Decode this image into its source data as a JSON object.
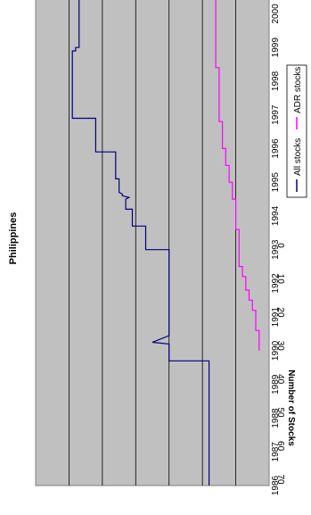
{
  "chart_data": {
    "type": "line",
    "title": "Philippines",
    "xlabel": "",
    "ylabel": "Number of Stocks",
    "xlim": [
      1986,
      2000.7
    ],
    "ylim": [
      0,
      70
    ],
    "x_ticks": [
      "1986",
      "1987",
      "1988",
      "1989",
      "1990",
      "1991",
      "1992",
      "1993",
      "1994",
      "1995",
      "1996",
      "1997",
      "1998",
      "1999",
      "2000"
    ],
    "y_ticks": [
      "0",
      "10",
      "20",
      "30",
      "40",
      "50",
      "60",
      "70"
    ],
    "grid": "horizontal major gridlines",
    "plot_background": "#c0c0c0",
    "legend_position": "bottom",
    "series": [
      {
        "name": "All stocks",
        "color": "#000080",
        "points": [
          [
            1986.0,
            18
          ],
          [
            1989.7,
            18
          ],
          [
            1989.7,
            30
          ],
          [
            1990.2,
            30
          ],
          [
            1990.25,
            35
          ],
          [
            1990.45,
            30
          ],
          [
            1993.0,
            30
          ],
          [
            1993.0,
            37
          ],
          [
            1993.7,
            37
          ],
          [
            1993.7,
            41
          ],
          [
            1994.2,
            41
          ],
          [
            1994.2,
            43
          ],
          [
            1994.5,
            43
          ],
          [
            1994.55,
            42
          ],
          [
            1994.6,
            44
          ],
          [
            1994.65,
            44
          ],
          [
            1994.7,
            45
          ],
          [
            1995.1,
            45
          ],
          [
            1995.1,
            46
          ],
          [
            1995.9,
            46
          ],
          [
            1995.9,
            52
          ],
          [
            1996.9,
            52
          ],
          [
            1996.9,
            59
          ],
          [
            1998.9,
            59
          ],
          [
            1998.9,
            58
          ],
          [
            1999.0,
            58
          ],
          [
            1999.0,
            57
          ],
          [
            1999.5,
            57
          ],
          [
            1999.6,
            57
          ],
          [
            2000.7,
            57
          ]
        ]
      },
      {
        "name": "ADR stocks",
        "color": "#ff00ff",
        "points": [
          [
            1990.0,
            3
          ],
          [
            1990.6,
            3
          ],
          [
            1990.6,
            4
          ],
          [
            1991.2,
            4
          ],
          [
            1991.2,
            5
          ],
          [
            1991.5,
            5
          ],
          [
            1991.5,
            6
          ],
          [
            1991.8,
            6
          ],
          [
            1991.8,
            7
          ],
          [
            1992.2,
            7
          ],
          [
            1992.2,
            8
          ],
          [
            1992.5,
            8
          ],
          [
            1992.5,
            9
          ],
          [
            1993.6,
            9
          ],
          [
            1993.6,
            10
          ],
          [
            1994.5,
            10
          ],
          [
            1994.5,
            11
          ],
          [
            1995.0,
            11
          ],
          [
            1995.0,
            12
          ],
          [
            1995.5,
            12
          ],
          [
            1995.5,
            13
          ],
          [
            1996.0,
            13
          ],
          [
            1996.0,
            14
          ],
          [
            1996.8,
            14
          ],
          [
            1996.8,
            15
          ],
          [
            1998.4,
            15
          ],
          [
            1998.4,
            16
          ],
          [
            2000.7,
            16
          ]
        ]
      }
    ]
  }
}
